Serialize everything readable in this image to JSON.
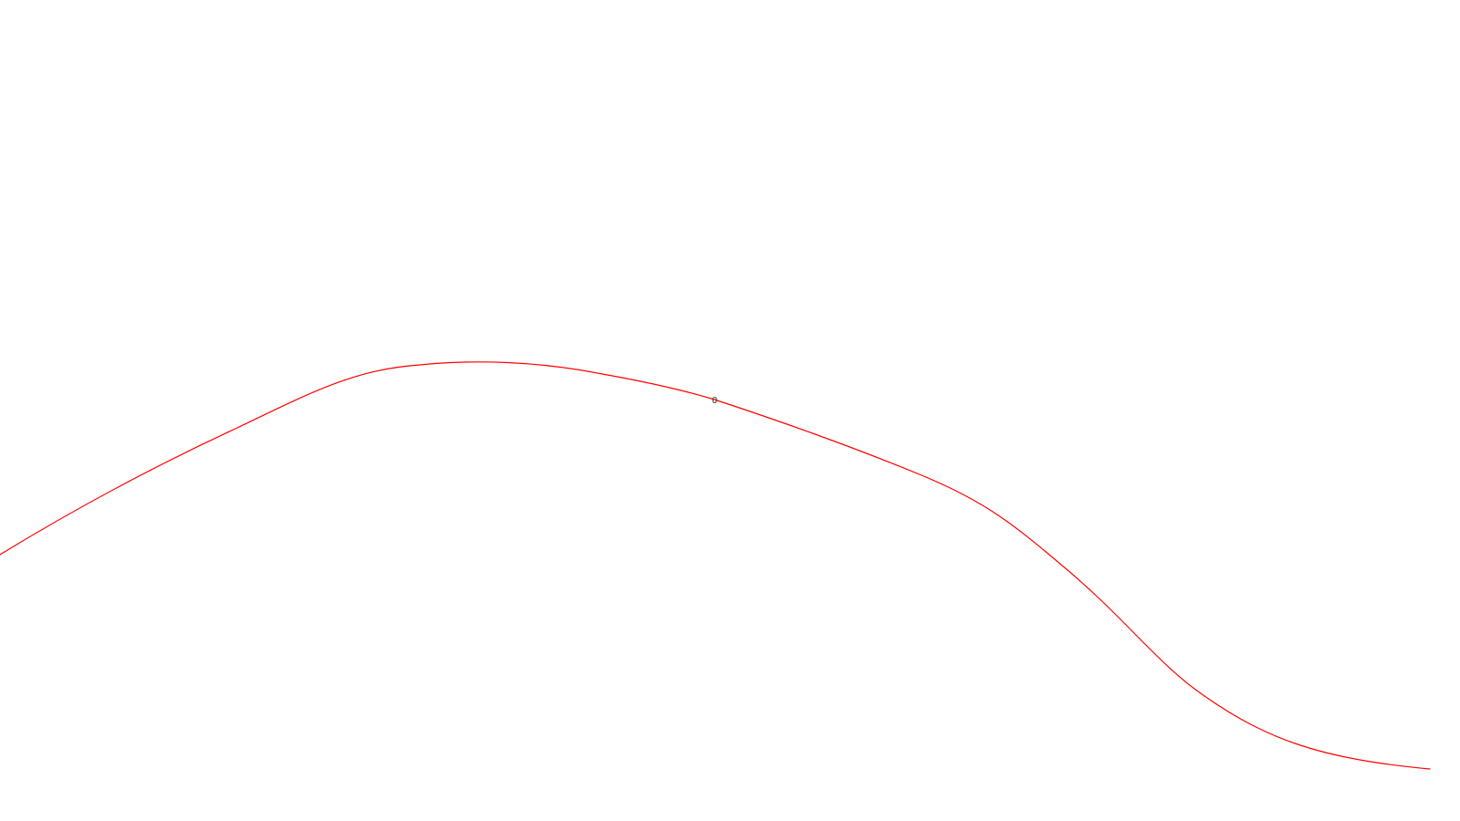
{
  "colors": {
    "background": "#ffffff",
    "curve": "#ff0000",
    "label": "#333333"
  },
  "curve": {
    "label": "0"
  }
}
